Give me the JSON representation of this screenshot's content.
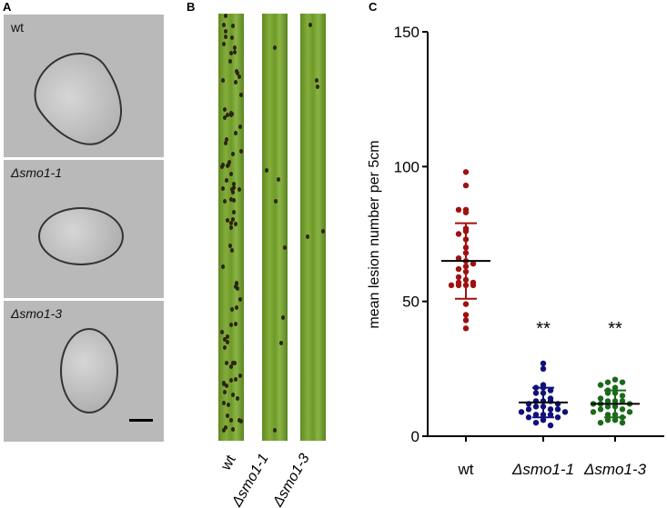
{
  "panels": {
    "a": {
      "label": "A",
      "images": [
        {
          "label": "wt"
        },
        {
          "label": "Δsmo1-1"
        },
        {
          "label": "Δsmo1-3"
        }
      ]
    },
    "b": {
      "label": "B",
      "leaves": [
        {
          "label": "wt"
        },
        {
          "label": "Δsmo1-1"
        },
        {
          "label": "Δsmo1-3"
        }
      ]
    },
    "c": {
      "label": "C"
    }
  },
  "chart_data": {
    "type": "scatter",
    "title": "",
    "xlabel": "",
    "ylabel": "mean lesion number per 5cm",
    "ylim": [
      0,
      150
    ],
    "yticks": [
      0,
      50,
      100,
      150
    ],
    "categories": [
      "wt",
      "Δsmo1-1",
      "Δsmo1-3"
    ],
    "grid": false,
    "series": [
      {
        "category": "wt",
        "color": "#a01010",
        "mean": 65,
        "sd_upper": 79,
        "sd_lower": 51,
        "annotation": "",
        "values": [
          98,
          93,
          84,
          83,
          84,
          76,
          75,
          77,
          73,
          70,
          68,
          65,
          66,
          64,
          63,
          62,
          61,
          58,
          59,
          57,
          56,
          56,
          56,
          56,
          57,
          49,
          45,
          43,
          40
        ]
      },
      {
        "category": "Δsmo1-1",
        "color": "#10107a",
        "mean": 12.5,
        "sd_upper": 18,
        "sd_lower": 7,
        "annotation": "**",
        "values": [
          27,
          25,
          19,
          18,
          18,
          17,
          16,
          16,
          14,
          13,
          13,
          13,
          12,
          12,
          11,
          11,
          10,
          10,
          10,
          9,
          9,
          8,
          8,
          8,
          7,
          7,
          6,
          5,
          4
        ]
      },
      {
        "category": "Δsmo1-3",
        "color": "#1a6a1a",
        "mean": 12,
        "sd_upper": 17,
        "sd_lower": 7,
        "annotation": "**",
        "values": [
          21,
          20,
          20,
          19,
          18,
          17,
          16,
          16,
          15,
          14,
          13,
          13,
          13,
          12,
          12,
          12,
          11,
          11,
          10,
          10,
          9,
          9,
          8,
          8,
          7,
          6,
          6,
          5,
          5
        ]
      }
    ]
  }
}
